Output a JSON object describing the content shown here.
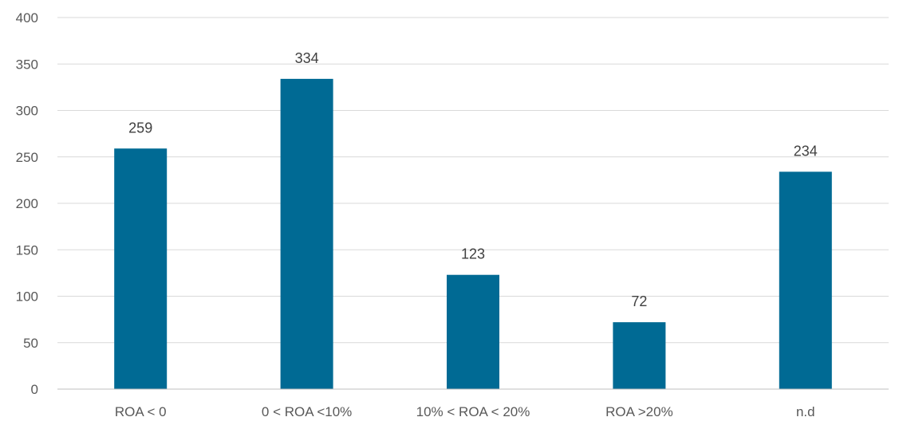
{
  "chart_data": {
    "type": "bar",
    "categories": [
      "ROA < 0",
      "0 < ROA <10%",
      "10% < ROA < 20%",
      "ROA >20%",
      "n.d"
    ],
    "values": [
      259,
      334,
      123,
      72,
      234
    ],
    "ylim": [
      0,
      400
    ],
    "yticks": [
      0,
      50,
      100,
      150,
      200,
      250,
      300,
      350,
      400
    ],
    "grid": true,
    "legend": "none",
    "data_labels": true,
    "colors": {
      "bar": "#006a94"
    }
  }
}
